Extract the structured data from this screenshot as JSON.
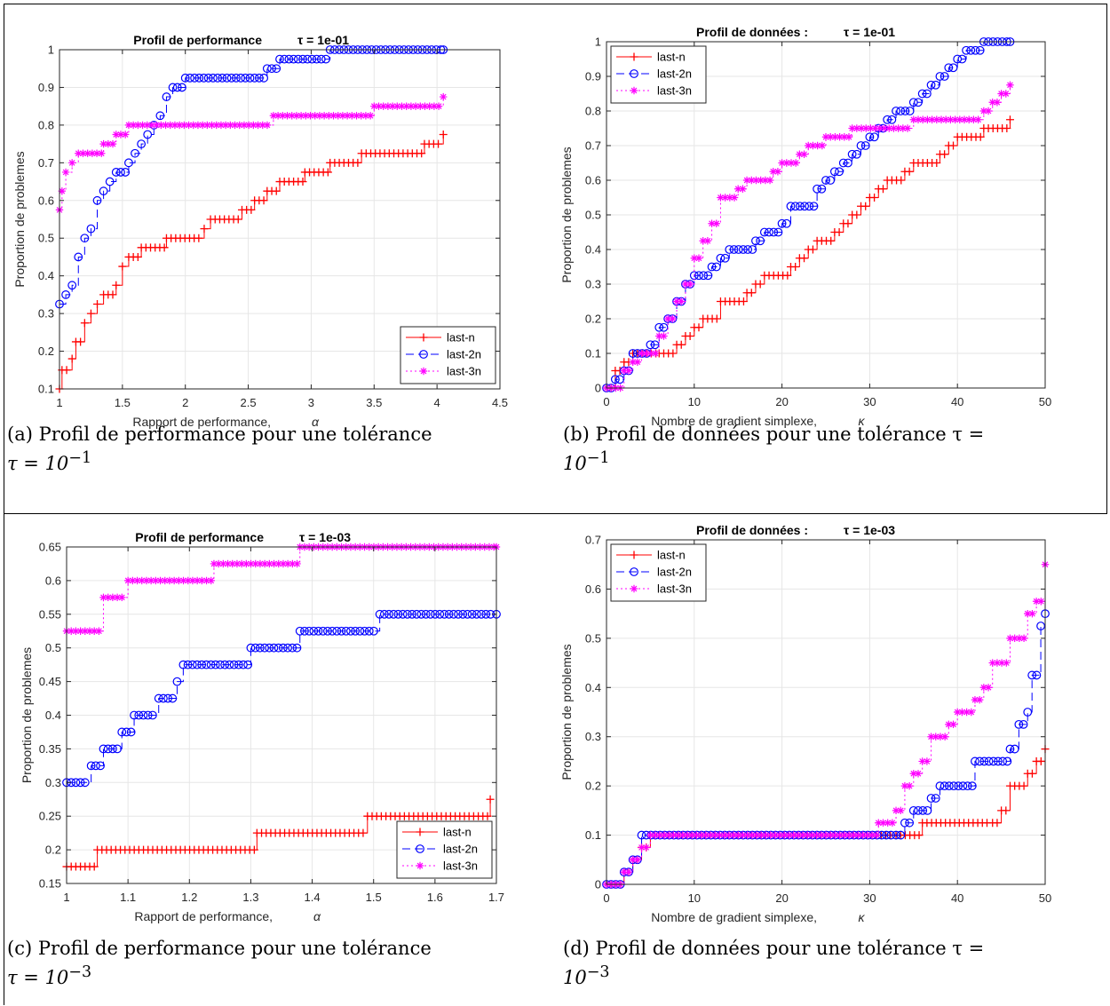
{
  "colors": {
    "last_n": "#ff0000",
    "last_2n": "#0000ff",
    "last_3n": "#ff00ff",
    "axis": "#262626",
    "grid": "#e6e6e6"
  },
  "captions": [
    {
      "label": "(a)",
      "text_main": "Profil de performance pour une tolérance",
      "math": "τ = 10",
      "exp": "−1"
    },
    {
      "label": "(b)",
      "text_main": "Profil de données pour une tolérance τ =",
      "math": "10",
      "exp": "−1"
    },
    {
      "label": "(c)",
      "text_main": "Profil de performance pour une tolérance",
      "math": "τ = 10",
      "exp": "−3"
    },
    {
      "label": "(d)",
      "text_main": "Profil de données pour une tolérance τ =",
      "math": "10",
      "exp": "−3"
    }
  ],
  "chart_data": [
    {
      "type": "line",
      "title": "Profil de performance",
      "subtitle": "τ = 1e-01",
      "xlabel": "Rapport de performance,",
      "xlabel_symbol": "α",
      "ylabel": "Proportion de problemes",
      "xlim": [
        1,
        4.5
      ],
      "ylim": [
        0.1,
        1
      ],
      "xticks": [
        "1",
        "1.5",
        "2",
        "2.5",
        "3",
        "3.5",
        "4",
        "4.5"
      ],
      "yticks": [
        "0.1",
        "0.2",
        "0.3",
        "0.4",
        "0.5",
        "0.6",
        "0.7",
        "0.8",
        "0.9",
        "1"
      ],
      "legend_position": "bottom-right",
      "grid": true,
      "series": [
        {
          "name": "last-n",
          "marker": "plus",
          "points": [
            [
              1,
              0.1
            ],
            [
              1.02,
              0.15
            ],
            [
              1.1,
              0.18
            ],
            [
              1.13,
              0.225
            ],
            [
              1.2,
              0.275
            ],
            [
              1.25,
              0.3
            ],
            [
              1.3,
              0.325
            ],
            [
              1.35,
              0.35
            ],
            [
              1.45,
              0.375
            ],
            [
              1.5,
              0.425
            ],
            [
              1.55,
              0.45
            ],
            [
              1.65,
              0.475
            ],
            [
              1.85,
              0.5
            ],
            [
              2.15,
              0.525
            ],
            [
              2.2,
              0.55
            ],
            [
              2.45,
              0.575
            ],
            [
              2.55,
              0.6
            ],
            [
              2.65,
              0.625
            ],
            [
              2.75,
              0.65
            ],
            [
              2.95,
              0.675
            ],
            [
              3.15,
              0.7
            ],
            [
              3.4,
              0.725
            ],
            [
              3.9,
              0.75
            ],
            [
              4.05,
              0.775
            ]
          ]
        },
        {
          "name": "last-2n",
          "marker": "circle",
          "points": [
            [
              1,
              0.325
            ],
            [
              1.05,
              0.35
            ],
            [
              1.1,
              0.375
            ],
            [
              1.15,
              0.45
            ],
            [
              1.2,
              0.5
            ],
            [
              1.25,
              0.525
            ],
            [
              1.3,
              0.6
            ],
            [
              1.35,
              0.625
            ],
            [
              1.4,
              0.65
            ],
            [
              1.45,
              0.675
            ],
            [
              1.55,
              0.7
            ],
            [
              1.6,
              0.725
            ],
            [
              1.65,
              0.75
            ],
            [
              1.7,
              0.775
            ],
            [
              1.75,
              0.8
            ],
            [
              1.8,
              0.825
            ],
            [
              1.85,
              0.875
            ],
            [
              1.9,
              0.9
            ],
            [
              2,
              0.925
            ],
            [
              2.65,
              0.95
            ],
            [
              2.75,
              0.975
            ],
            [
              3.15,
              1
            ],
            [
              4.05,
              1
            ]
          ]
        },
        {
          "name": "last-3n",
          "marker": "star",
          "points": [
            [
              1,
              0.575
            ],
            [
              1.02,
              0.625
            ],
            [
              1.05,
              0.675
            ],
            [
              1.1,
              0.7
            ],
            [
              1.15,
              0.725
            ],
            [
              1.35,
              0.75
            ],
            [
              1.45,
              0.775
            ],
            [
              1.55,
              0.8
            ],
            [
              2.7,
              0.825
            ],
            [
              3.5,
              0.85
            ],
            [
              4.05,
              0.875
            ]
          ]
        }
      ]
    },
    {
      "type": "line",
      "title": "Profil de données :",
      "subtitle": "τ = 1e-01",
      "xlabel": "Nombre de gradient simplexe,",
      "xlabel_symbol": "κ",
      "ylabel": "Proportion de problemes",
      "xlim": [
        0,
        50
      ],
      "ylim": [
        0,
        1
      ],
      "xticks": [
        "0",
        "10",
        "20",
        "30",
        "40",
        "50"
      ],
      "yticks": [
        "0",
        "0.1",
        "0.2",
        "0.3",
        "0.4",
        "0.5",
        "0.6",
        "0.7",
        "0.8",
        "0.9",
        "1"
      ],
      "legend_position": "top-left",
      "grid": true,
      "series": [
        {
          "name": "last-n",
          "marker": "plus",
          "points": [
            [
              0,
              0
            ],
            [
              1,
              0.05
            ],
            [
              2,
              0.075
            ],
            [
              3,
              0.1
            ],
            [
              6,
              0.1
            ],
            [
              8,
              0.125
            ],
            [
              9,
              0.15
            ],
            [
              10,
              0.175
            ],
            [
              11,
              0.2
            ],
            [
              13,
              0.25
            ],
            [
              16,
              0.275
            ],
            [
              17,
              0.3
            ],
            [
              18,
              0.325
            ],
            [
              21,
              0.35
            ],
            [
              22,
              0.375
            ],
            [
              23,
              0.4
            ],
            [
              24,
              0.425
            ],
            [
              26,
              0.45
            ],
            [
              27,
              0.475
            ],
            [
              28,
              0.5
            ],
            [
              29,
              0.525
            ],
            [
              30,
              0.55
            ],
            [
              31,
              0.575
            ],
            [
              32,
              0.6
            ],
            [
              34,
              0.625
            ],
            [
              35,
              0.65
            ],
            [
              38,
              0.675
            ],
            [
              39,
              0.7
            ],
            [
              40,
              0.725
            ],
            [
              43,
              0.75
            ],
            [
              46,
              0.775
            ]
          ]
        },
        {
          "name": "last-2n",
          "marker": "circle",
          "points": [
            [
              0,
              0
            ],
            [
              1,
              0.025
            ],
            [
              2,
              0.05
            ],
            [
              3,
              0.1
            ],
            [
              5,
              0.125
            ],
            [
              6,
              0.175
            ],
            [
              7,
              0.2
            ],
            [
              8,
              0.25
            ],
            [
              9,
              0.3
            ],
            [
              10,
              0.325
            ],
            [
              12,
              0.35
            ],
            [
              13,
              0.375
            ],
            [
              14,
              0.4
            ],
            [
              17,
              0.425
            ],
            [
              18,
              0.45
            ],
            [
              20,
              0.475
            ],
            [
              21,
              0.525
            ],
            [
              24,
              0.575
            ],
            [
              25,
              0.6
            ],
            [
              26,
              0.625
            ],
            [
              27,
              0.65
            ],
            [
              28,
              0.675
            ],
            [
              29,
              0.7
            ],
            [
              30,
              0.725
            ],
            [
              31,
              0.75
            ],
            [
              32,
              0.775
            ],
            [
              33,
              0.8
            ],
            [
              35,
              0.825
            ],
            [
              36,
              0.85
            ],
            [
              37,
              0.875
            ],
            [
              38,
              0.9
            ],
            [
              39,
              0.925
            ],
            [
              40,
              0.95
            ],
            [
              41,
              0.975
            ],
            [
              43,
              1
            ],
            [
              46,
              1
            ]
          ]
        },
        {
          "name": "last-3n",
          "marker": "star",
          "points": [
            [
              0,
              0
            ],
            [
              2,
              0.05
            ],
            [
              3,
              0.075
            ],
            [
              4,
              0.1
            ],
            [
              6,
              0.15
            ],
            [
              7,
              0.2
            ],
            [
              8,
              0.25
            ],
            [
              9,
              0.3
            ],
            [
              10,
              0.375
            ],
            [
              11,
              0.425
            ],
            [
              12,
              0.475
            ],
            [
              13,
              0.55
            ],
            [
              15,
              0.575
            ],
            [
              16,
              0.6
            ],
            [
              19,
              0.625
            ],
            [
              20,
              0.65
            ],
            [
              22,
              0.675
            ],
            [
              23,
              0.7
            ],
            [
              25,
              0.725
            ],
            [
              28,
              0.75
            ],
            [
              35,
              0.775
            ],
            [
              43,
              0.8
            ],
            [
              44,
              0.825
            ],
            [
              45,
              0.85
            ],
            [
              46,
              0.875
            ]
          ]
        }
      ]
    },
    {
      "type": "line",
      "title": "Profil de performance",
      "subtitle": "τ = 1e-03",
      "xlabel": "Rapport de performance,",
      "xlabel_symbol": "α",
      "ylabel": "Proportion de problemes",
      "xlim": [
        1,
        1.7
      ],
      "ylim": [
        0.15,
        0.65
      ],
      "xticks": [
        "1",
        "1.1",
        "1.2",
        "1.3",
        "1.4",
        "1.5",
        "1.6",
        "1.7"
      ],
      "yticks": [
        "0.15",
        "0.2",
        "0.25",
        "0.3",
        "0.35",
        "0.4",
        "0.45",
        "0.5",
        "0.55",
        "0.6",
        "0.65"
      ],
      "legend_position": "bottom-right",
      "grid": true,
      "series": [
        {
          "name": "last-n",
          "marker": "plus",
          "points": [
            [
              1,
              0.175
            ],
            [
              1.05,
              0.2
            ],
            [
              1.31,
              0.225
            ],
            [
              1.49,
              0.25
            ],
            [
              1.69,
              0.275
            ]
          ]
        },
        {
          "name": "last-2n",
          "marker": "circle",
          "points": [
            [
              1,
              0.3
            ],
            [
              1.04,
              0.325
            ],
            [
              1.06,
              0.35
            ],
            [
              1.09,
              0.375
            ],
            [
              1.11,
              0.4
            ],
            [
              1.15,
              0.425
            ],
            [
              1.18,
              0.45
            ],
            [
              1.19,
              0.475
            ],
            [
              1.3,
              0.5
            ],
            [
              1.38,
              0.525
            ],
            [
              1.51,
              0.55
            ],
            [
              1.7,
              0.55
            ]
          ]
        },
        {
          "name": "last-3n",
          "marker": "star",
          "points": [
            [
              1,
              0.525
            ],
            [
              1.06,
              0.575
            ],
            [
              1.1,
              0.6
            ],
            [
              1.24,
              0.625
            ],
            [
              1.38,
              0.65
            ],
            [
              1.7,
              0.65
            ]
          ]
        }
      ]
    },
    {
      "type": "line",
      "title": "Profil de données :",
      "subtitle": "τ = 1e-03",
      "xlabel": "Nombre de gradient simplexe,",
      "xlabel_symbol": "κ",
      "ylabel": "Proportion de problemes",
      "xlim": [
        0,
        50
      ],
      "ylim": [
        0,
        0.7
      ],
      "xticks": [
        "0",
        "10",
        "20",
        "30",
        "40",
        "50"
      ],
      "yticks": [
        "0",
        "0.1",
        "0.2",
        "0.3",
        "0.4",
        "0.5",
        "0.6",
        "0.7"
      ],
      "legend_position": "top-left",
      "grid": true,
      "series": [
        {
          "name": "last-n",
          "marker": "plus",
          "points": [
            [
              0,
              0
            ],
            [
              2,
              0.025
            ],
            [
              3,
              0.05
            ],
            [
              4,
              0.075
            ],
            [
              5,
              0.1
            ],
            [
              33,
              0.1
            ],
            [
              36,
              0.125
            ],
            [
              44,
              0.125
            ],
            [
              45,
              0.15
            ],
            [
              46,
              0.2
            ],
            [
              48,
              0.225
            ],
            [
              49,
              0.25
            ],
            [
              50,
              0.275
            ]
          ]
        },
        {
          "name": "last-2n",
          "marker": "circle",
          "points": [
            [
              0,
              0
            ],
            [
              2,
              0.025
            ],
            [
              3,
              0.05
            ],
            [
              4,
              0.1
            ],
            [
              33,
              0.1
            ],
            [
              34,
              0.125
            ],
            [
              35,
              0.15
            ],
            [
              37,
              0.175
            ],
            [
              38,
              0.2
            ],
            [
              42,
              0.25
            ],
            [
              46,
              0.275
            ],
            [
              47,
              0.325
            ],
            [
              48,
              0.35
            ],
            [
              48.5,
              0.425
            ],
            [
              49.5,
              0.525
            ],
            [
              50,
              0.55
            ]
          ]
        },
        {
          "name": "last-3n",
          "marker": "star",
          "points": [
            [
              0,
              0
            ],
            [
              2,
              0.025
            ],
            [
              3,
              0.05
            ],
            [
              4,
              0.075
            ],
            [
              5,
              0.1
            ],
            [
              31,
              0.125
            ],
            [
              33,
              0.15
            ],
            [
              34,
              0.2
            ],
            [
              35,
              0.225
            ],
            [
              36,
              0.25
            ],
            [
              37,
              0.3
            ],
            [
              39,
              0.325
            ],
            [
              40,
              0.35
            ],
            [
              42,
              0.375
            ],
            [
              43,
              0.4
            ],
            [
              44,
              0.45
            ],
            [
              46,
              0.5
            ],
            [
              48,
              0.55
            ],
            [
              49,
              0.575
            ],
            [
              50,
              0.65
            ]
          ]
        }
      ]
    }
  ]
}
